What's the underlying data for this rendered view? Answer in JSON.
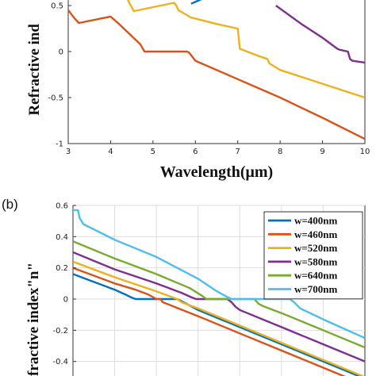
{
  "colors": [
    "#0072BD",
    "#D95319",
    "#EDB120",
    "#7E2F8E",
    "#77AC30",
    "#4DBEEE"
  ],
  "chart_data": [
    {
      "type": "line",
      "panel_label": "",
      "xlabel": "Wavelength(μm)",
      "ylabel": "Refractive ind",
      "xlim": [
        3,
        10
      ],
      "ylim": [
        -1,
        0.5
      ],
      "xticks": [
        "3",
        "4",
        "5",
        "6",
        "7",
        "8",
        "9",
        "10"
      ],
      "yticks": [
        "-1",
        "-0.5",
        "0",
        "0.5"
      ],
      "grid": false,
      "series": [
        {
          "x": [
            5.9,
            6.1,
            6.3
          ],
          "y": [
            0.52,
            0.56,
            0.6
          ]
        },
        {
          "x": [
            3.0,
            3.05,
            3.15,
            3.25,
            4.0,
            4.2,
            4.7,
            4.8,
            5.8,
            5.85,
            6.0,
            7.0,
            8.0,
            9.0,
            10.0
          ],
          "y": [
            0.45,
            0.42,
            0.36,
            0.31,
            0.38,
            0.3,
            0.08,
            0.0,
            0.0,
            -0.01,
            -0.1,
            -0.3,
            -0.5,
            -0.72,
            -0.95
          ]
        },
        {
          "x": [
            4.35,
            4.45,
            4.55,
            5.5,
            5.55,
            5.6,
            5.9,
            6.5,
            7.0,
            7.05,
            7.5,
            7.7,
            7.75,
            8.0,
            9.0,
            10.0
          ],
          "y": [
            0.62,
            0.52,
            0.44,
            0.53,
            0.5,
            0.45,
            0.37,
            0.3,
            0.25,
            0.03,
            -0.05,
            -0.08,
            -0.13,
            -0.2,
            -0.35,
            -0.5
          ]
        },
        {
          "x": [
            7.9,
            8.5,
            9.0,
            9.35,
            9.4,
            9.6,
            9.65,
            9.7,
            10.0
          ],
          "y": [
            0.5,
            0.3,
            0.15,
            0.03,
            0.02,
            0.0,
            -0.08,
            -0.1,
            -0.12
          ]
        }
      ]
    },
    {
      "type": "line",
      "panel_label": "(b)",
      "xlabel": "",
      "ylabel": "fractive index\"n\"",
      "xlim": [
        3,
        10
      ],
      "ylim": [
        -0.5,
        0.6
      ],
      "yticks": [
        "-0.4",
        "-0.2",
        "0",
        "0.2",
        "0.4",
        "0.6"
      ],
      "grid": true,
      "legend_position": "top-right",
      "series": [
        {
          "name": "w=400nm",
          "x": [
            3.0,
            3.5,
            4.0,
            4.25,
            4.4,
            4.5,
            5.5,
            5.65,
            6.0,
            7.0,
            8.0,
            9.0,
            10.0
          ],
          "y": [
            0.16,
            0.11,
            0.06,
            0.03,
            0.01,
            0.0,
            0.0,
            -0.02,
            -0.07,
            -0.18,
            -0.29,
            -0.4,
            -0.51
          ]
        },
        {
          "name": "w=460nm",
          "x": [
            3.0,
            4.0,
            4.5,
            4.8,
            5.0,
            5.1,
            5.15,
            6.0,
            7.0,
            8.0,
            9.0,
            10.0
          ],
          "y": [
            0.2,
            0.1,
            0.06,
            0.03,
            0.0,
            0.0,
            -0.02,
            -0.11,
            -0.22,
            -0.33,
            -0.44,
            -0.55
          ]
        },
        {
          "name": "w=520nm",
          "x": [
            3.0,
            4.0,
            5.0,
            5.3,
            5.5,
            5.6,
            5.8,
            6.0,
            7.0,
            8.0,
            9.0,
            10.0
          ],
          "y": [
            0.24,
            0.14,
            0.05,
            0.02,
            0.0,
            -0.02,
            -0.04,
            -0.06,
            -0.17,
            -0.28,
            -0.39,
            -0.5
          ]
        },
        {
          "name": "w=580nm",
          "x": [
            3.0,
            4.0,
            5.0,
            5.6,
            5.85,
            5.95,
            6.1,
            6.7,
            6.8,
            6.9,
            7.0,
            8.0,
            9.0,
            10.0
          ],
          "y": [
            0.3,
            0.19,
            0.1,
            0.04,
            0.01,
            0.0,
            0.0,
            0.0,
            -0.02,
            -0.05,
            -0.07,
            -0.18,
            -0.29,
            -0.4
          ]
        },
        {
          "name": "w=640nm",
          "x": [
            3.0,
            4.0,
            5.0,
            5.8,
            6.1,
            6.2,
            7.0,
            7.35,
            7.45,
            7.6,
            8.0,
            9.0,
            10.0
          ],
          "y": [
            0.37,
            0.26,
            0.16,
            0.07,
            0.02,
            0.0,
            0.0,
            0.0,
            -0.03,
            -0.05,
            -0.09,
            -0.2,
            -0.31
          ]
        },
        {
          "name": "w=700nm",
          "x": [
            3.0,
            3.12,
            3.16,
            3.25,
            4.0,
            5.0,
            6.0,
            6.45,
            6.65,
            6.8,
            7.5,
            8.2,
            8.3,
            8.45,
            9.0,
            10.0
          ],
          "y": [
            0.57,
            0.57,
            0.52,
            0.48,
            0.38,
            0.27,
            0.13,
            0.05,
            0.02,
            0.0,
            0.0,
            0.0,
            -0.02,
            -0.06,
            -0.13,
            -0.25
          ]
        }
      ]
    }
  ]
}
